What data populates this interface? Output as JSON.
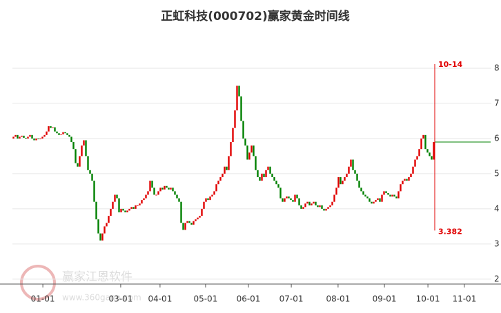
{
  "chart_data": {
    "type": "candlestick",
    "title": "正虹科技(000702)赢家黄金时间线",
    "open": [
      6.0,
      6.05,
      6.1,
      6.0,
      6.05,
      6.08,
      6.02,
      6.0,
      6.05,
      6.1,
      6.0,
      5.95,
      6.0,
      5.98,
      6.0,
      6.05,
      6.1,
      6.2,
      6.35,
      6.3,
      6.32,
      6.2,
      6.15,
      6.1,
      6.12,
      6.18,
      6.15,
      6.1,
      6.05,
      5.9,
      5.7,
      5.3,
      5.2,
      5.5,
      5.8,
      5.95,
      5.5,
      5.1,
      5.0,
      4.8,
      4.2,
      3.7,
      3.3,
      3.1,
      3.3,
      3.5,
      3.6,
      3.8,
      4.0,
      4.2,
      4.4,
      4.3,
      3.9,
      4.0,
      3.95,
      3.9,
      3.95,
      4.0,
      4.05,
      4.0,
      4.1,
      4.1,
      4.15,
      4.25,
      4.3,
      4.4,
      4.5,
      4.8,
      4.6,
      4.4,
      4.4,
      4.5,
      4.6,
      4.55,
      4.65,
      4.6,
      4.55,
      4.6,
      4.5,
      4.4,
      4.3,
      4.2,
      3.6,
      3.4,
      3.6,
      3.65,
      3.6,
      3.55,
      3.65,
      3.7,
      3.75,
      3.8,
      4.0,
      4.2,
      4.3,
      4.25,
      4.35,
      4.4,
      4.5,
      4.7,
      4.8,
      4.9,
      5.0,
      5.2,
      5.1,
      5.5,
      5.9,
      6.3,
      6.8,
      7.5,
      7.2,
      6.5,
      6.0,
      5.8,
      5.4,
      5.6,
      5.8,
      5.5,
      5.1,
      4.9,
      4.8,
      5.0,
      4.9,
      5.1,
      5.2,
      5.0,
      4.9,
      4.8,
      4.7,
      4.6,
      4.3,
      4.2,
      4.3,
      4.35,
      4.3,
      4.25,
      4.2,
      4.4,
      4.3,
      4.1,
      4.0,
      4.05,
      4.15,
      4.2,
      4.1,
      4.15,
      4.2,
      4.1,
      4.05,
      4.1,
      4.0,
      3.95,
      4.0,
      4.05,
      4.1,
      4.2,
      4.4,
      4.6,
      4.9,
      4.7,
      4.8,
      4.9,
      5.0,
      5.2,
      5.4,
      5.1,
      5.0,
      4.8,
      4.6,
      4.5,
      4.4,
      4.35,
      4.3,
      4.2,
      4.15,
      4.2,
      4.25,
      4.3,
      4.2,
      4.4,
      4.5,
      4.45,
      4.4,
      4.35,
      4.4,
      4.35,
      4.3,
      4.5,
      4.7,
      4.8,
      4.85,
      4.8,
      4.9,
      5.0,
      5.2,
      5.4,
      5.5,
      5.7,
      6.0,
      6.1,
      5.7,
      5.6,
      5.5,
      5.4
    ],
    "close": [
      6.05,
      6.1,
      6.0,
      6.05,
      6.08,
      6.02,
      6.0,
      6.05,
      6.1,
      6.0,
      5.95,
      6.0,
      5.98,
      6.0,
      6.05,
      6.1,
      6.2,
      6.35,
      6.3,
      6.32,
      6.2,
      6.15,
      6.1,
      6.12,
      6.18,
      6.15,
      6.1,
      6.05,
      5.9,
      5.7,
      5.3,
      5.2,
      5.5,
      5.8,
      5.95,
      5.5,
      5.1,
      5.0,
      4.8,
      4.2,
      3.7,
      3.3,
      3.1,
      3.3,
      3.5,
      3.6,
      3.8,
      4.0,
      4.2,
      4.4,
      4.3,
      3.9,
      4.0,
      3.95,
      3.9,
      3.95,
      4.0,
      4.05,
      4.0,
      4.1,
      4.1,
      4.15,
      4.25,
      4.3,
      4.4,
      4.5,
      4.8,
      4.6,
      4.4,
      4.4,
      4.5,
      4.6,
      4.55,
      4.65,
      4.6,
      4.55,
      4.6,
      4.5,
      4.4,
      4.3,
      4.2,
      3.6,
      3.4,
      3.6,
      3.65,
      3.6,
      3.55,
      3.65,
      3.7,
      3.75,
      3.8,
      4.0,
      4.2,
      4.3,
      4.25,
      4.35,
      4.4,
      4.5,
      4.7,
      4.8,
      4.9,
      5.0,
      5.2,
      5.1,
      5.5,
      5.9,
      6.3,
      6.8,
      7.5,
      7.2,
      6.5,
      6.0,
      5.8,
      5.4,
      5.6,
      5.8,
      5.5,
      5.1,
      4.9,
      4.8,
      5.0,
      4.9,
      5.1,
      5.2,
      5.0,
      4.9,
      4.8,
      4.7,
      4.6,
      4.3,
      4.2,
      4.3,
      4.35,
      4.3,
      4.25,
      4.2,
      4.4,
      4.3,
      4.1,
      4.0,
      4.05,
      4.15,
      4.2,
      4.1,
      4.15,
      4.2,
      4.1,
      4.05,
      4.1,
      4.0,
      3.95,
      4.0,
      4.05,
      4.1,
      4.2,
      4.4,
      4.6,
      4.9,
      4.7,
      4.8,
      4.9,
      5.0,
      5.2,
      5.4,
      5.1,
      5.0,
      4.8,
      4.6,
      4.5,
      4.4,
      4.35,
      4.3,
      4.2,
      4.15,
      4.2,
      4.25,
      4.3,
      4.2,
      4.4,
      4.5,
      4.45,
      4.4,
      4.35,
      4.4,
      4.35,
      4.3,
      4.5,
      4.7,
      4.8,
      4.85,
      4.8,
      4.9,
      5.0,
      5.2,
      5.4,
      5.5,
      5.7,
      6.0,
      6.1,
      5.7,
      5.6,
      5.5,
      5.4,
      5.9
    ],
    "up_color": "#e00000",
    "down_color": "#008000",
    "xlim": [
      0,
      231
    ],
    "xticks": [
      {
        "value": 14.7,
        "label": "01-01"
      },
      {
        "value": 52.3,
        "label": "03-01"
      },
      {
        "value": 71.3,
        "label": "04-01"
      },
      {
        "value": 93.3,
        "label": "05-01"
      },
      {
        "value": 114,
        "label": "06-01"
      },
      {
        "value": 134.7,
        "label": "07-01"
      },
      {
        "value": 157.3,
        "label": "08-01"
      },
      {
        "value": 179.7,
        "label": "09-01"
      },
      {
        "value": 200.7,
        "label": "10-01"
      },
      {
        "value": 218.3,
        "label": "11-01"
      }
    ],
    "ylim": [
      1.86,
      8.96
    ],
    "yticks": [
      2,
      3,
      4,
      5,
      6,
      7,
      8
    ],
    "grid": true,
    "marker": {
      "date_label": "10-14",
      "value": 3.382,
      "color": "#e00000"
    },
    "watermark": {
      "name": "赢家江恩软件",
      "url": "www.360gann.com"
    }
  }
}
